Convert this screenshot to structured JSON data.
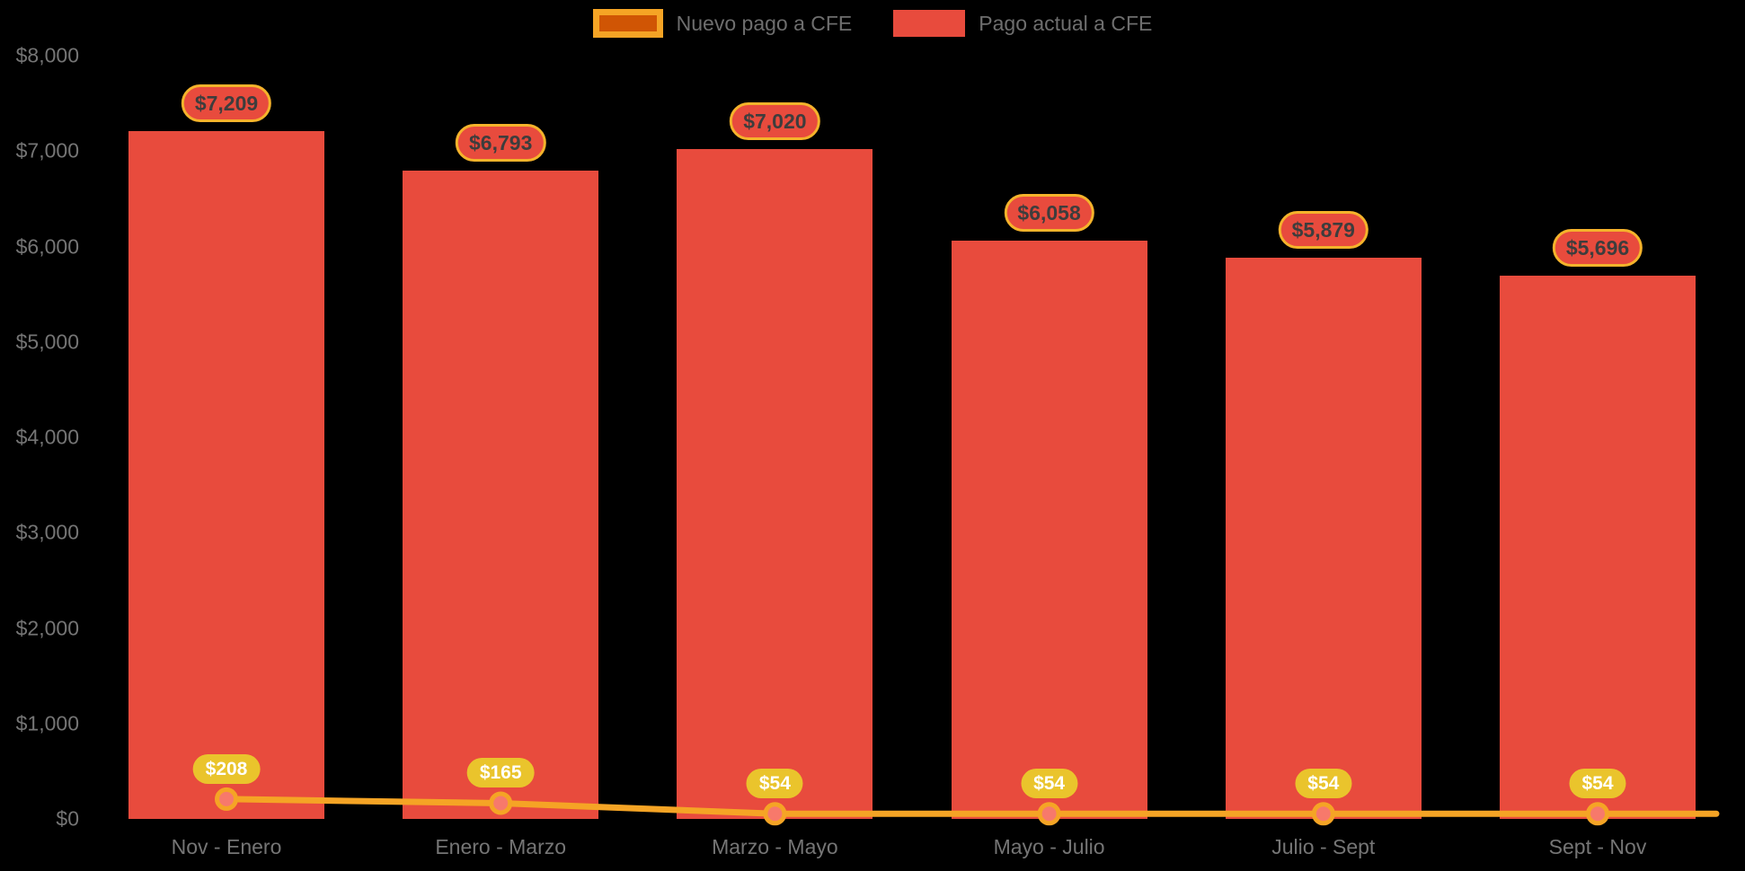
{
  "background": "#000000",
  "colors": {
    "bar": "#E84B3D",
    "line": "#F5A425",
    "accent_border": "#F5B32B",
    "marker_fill": "#F7796B",
    "line_pill_bg": "#EAC42C",
    "line_pill_text": "#FFFFFF",
    "bar_pill_text": "#3D3D3D",
    "axis_text": "#757575",
    "legend_text": "#6E6E6E",
    "legend_line_swatch_fill": "#D05504"
  },
  "legend": {
    "items": [
      {
        "label": "Nuevo pago a CFE"
      },
      {
        "label": "Pago actual a CFE"
      }
    ]
  },
  "chart_data": {
    "type": "bar",
    "title": "",
    "categories": [
      "Nov - Enero",
      "Enero - Marzo",
      "Marzo - Mayo",
      "Mayo - Julio",
      "Julio - Sept",
      "Sept - Nov"
    ],
    "series": [
      {
        "name": "Pago actual a CFE",
        "type": "bar",
        "color": "#E84B3D",
        "values": [
          7209,
          6793,
          7020,
          6058,
          5879,
          5696
        ],
        "value_labels": [
          "$7,209",
          "$6,793",
          "$7,020",
          "$6,058",
          "$5,879",
          "$5,696"
        ]
      },
      {
        "name": "Nuevo pago a CFE",
        "type": "line",
        "color": "#F5A425",
        "values": [
          208,
          165,
          54,
          54,
          54,
          54
        ],
        "value_labels": [
          "$208",
          "$165",
          "$54",
          "$54",
          "$54",
          "$54"
        ]
      }
    ],
    "ylim": [
      0,
      8000
    ],
    "yticks": [
      {
        "value": 0,
        "label": "$0"
      },
      {
        "value": 1000,
        "label": "$1,000"
      },
      {
        "value": 2000,
        "label": "$2,000"
      },
      {
        "value": 3000,
        "label": "$3,000"
      },
      {
        "value": 4000,
        "label": "$4,000"
      },
      {
        "value": 5000,
        "label": "$5,000"
      },
      {
        "value": 6000,
        "label": "$6,000"
      },
      {
        "value": 7000,
        "label": "$7,000"
      },
      {
        "value": 8000,
        "label": "$8,000"
      }
    ],
    "grid": false,
    "legend_position": "top-center"
  }
}
